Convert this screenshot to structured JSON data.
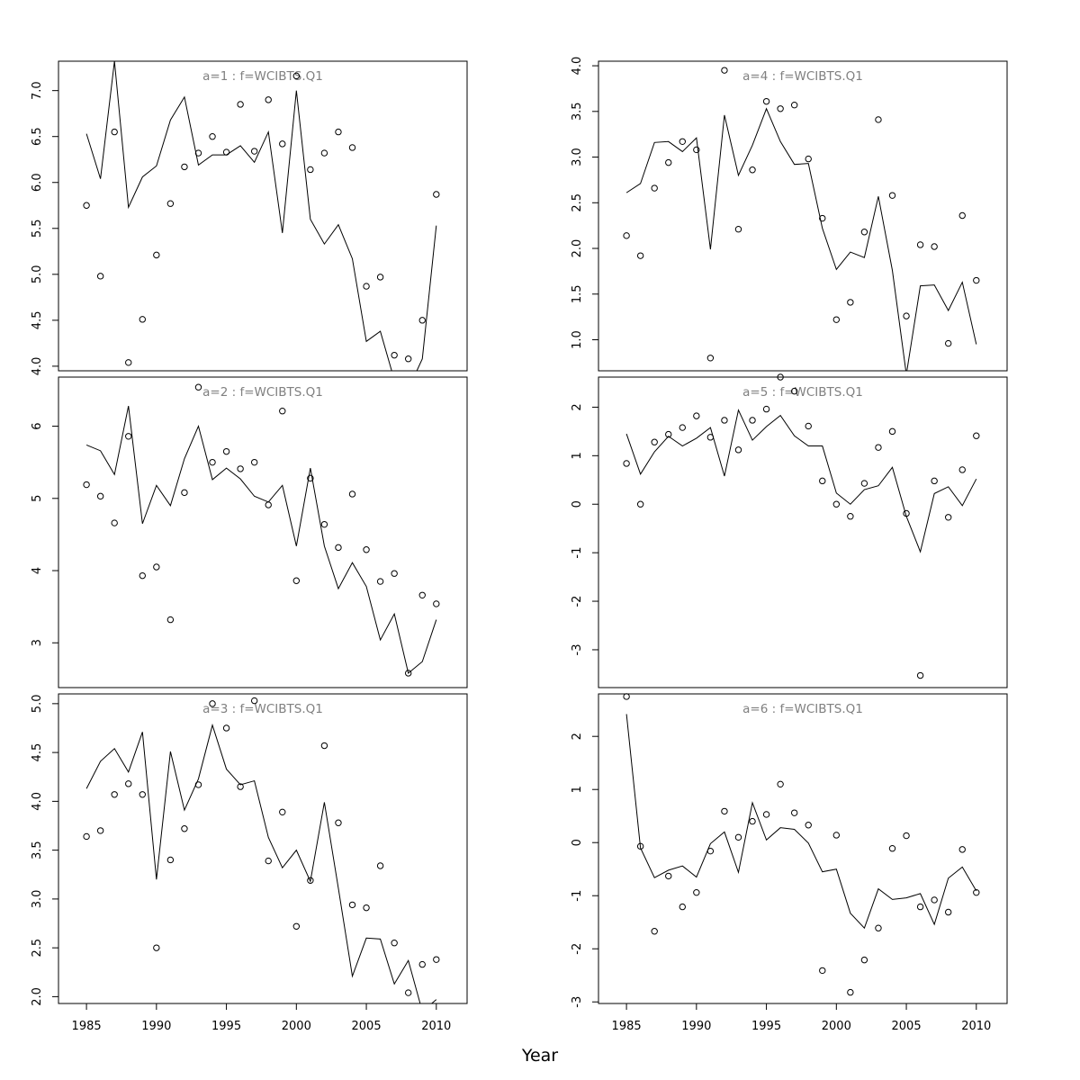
{
  "figure": {
    "xlabel": "Year"
  },
  "chart_data": [
    {
      "type": "line+scatter",
      "title": "a=1 : f=WCIBTS.Q1",
      "xlim": [
        1983,
        2012.2
      ],
      "ylim": [
        3.95,
        7.32
      ],
      "yticks": [
        4.0,
        4.5,
        5.0,
        5.5,
        6.0,
        6.5,
        7.0
      ],
      "ytick_labels": [
        "4.0",
        "4.5",
        "5.0",
        "5.5",
        "6.0",
        "6.5",
        "7.0"
      ],
      "xticks": [],
      "x": [
        1985,
        1986,
        1987,
        1988,
        1989,
        1990,
        1991,
        1992,
        1993,
        1994,
        1995,
        1996,
        1997,
        1998,
        1999,
        2000,
        2001,
        2002,
        2003,
        2004,
        2005,
        2006,
        2007,
        2008,
        2009,
        2010
      ],
      "observed": [
        5.75,
        4.98,
        6.55,
        4.04,
        4.51,
        5.21,
        5.77,
        6.17,
        6.32,
        6.5,
        6.33,
        6.85,
        6.34,
        6.9,
        6.42,
        7.16,
        6.14,
        6.32,
        6.55,
        6.38,
        4.87,
        4.97,
        4.12,
        4.08,
        4.5,
        5.87
      ],
      "fitted": [
        6.53,
        6.04,
        7.32,
        5.73,
        6.06,
        6.18,
        6.68,
        6.93,
        6.19,
        6.3,
        6.3,
        6.4,
        6.22,
        6.55,
        5.45,
        7.0,
        5.6,
        5.33,
        5.54,
        5.17,
        4.27,
        4.38,
        3.85,
        3.75,
        4.08,
        5.53
      ]
    },
    {
      "type": "line+scatter",
      "title": "a=2 : f=WCIBTS.Q1",
      "xlim": [
        1983,
        2012.2
      ],
      "ylim": [
        2.38,
        6.68
      ],
      "yticks": [
        3,
        4,
        5,
        6
      ],
      "ytick_labels": [
        "3",
        "4",
        "5",
        "6"
      ],
      "xticks": [],
      "x": [
        1985,
        1986,
        1987,
        1988,
        1989,
        1990,
        1991,
        1992,
        1993,
        1994,
        1995,
        1996,
        1997,
        1998,
        1999,
        2000,
        2001,
        2002,
        2003,
        2004,
        2005,
        2006,
        2007,
        2008,
        2009,
        2010
      ],
      "observed": [
        5.19,
        5.03,
        4.66,
        5.86,
        3.93,
        4.05,
        3.32,
        5.08,
        6.54,
        5.5,
        5.65,
        5.41,
        5.5,
        4.91,
        6.21,
        3.86,
        5.28,
        4.64,
        4.32,
        5.06,
        4.29,
        3.85,
        3.96,
        2.58,
        3.66,
        3.54
      ],
      "fitted": [
        5.74,
        5.66,
        5.33,
        6.28,
        4.65,
        5.18,
        4.9,
        5.55,
        6.0,
        5.26,
        5.42,
        5.27,
        5.03,
        4.95,
        5.18,
        4.34,
        5.42,
        4.34,
        3.75,
        4.11,
        3.78,
        3.04,
        3.4,
        2.58,
        2.74,
        3.32
      ]
    },
    {
      "type": "line+scatter",
      "title": "a=3 : f=WCIBTS.Q1",
      "xlim": [
        1983,
        2012.2
      ],
      "ylim": [
        1.93,
        5.1
      ],
      "yticks": [
        2.0,
        2.5,
        3.0,
        3.5,
        4.0,
        4.5,
        5.0
      ],
      "ytick_labels": [
        "2.0",
        "2.5",
        "3.0",
        "3.5",
        "4.0",
        "4.5",
        "5.0"
      ],
      "xticks": [
        1985,
        1990,
        1995,
        2000,
        2005,
        2010
      ],
      "xtick_labels": [
        "1985",
        "1990",
        "1995",
        "2000",
        "2005",
        "2010"
      ],
      "x": [
        1985,
        1986,
        1987,
        1988,
        1989,
        1990,
        1991,
        1992,
        1993,
        1994,
        1995,
        1996,
        1997,
        1998,
        1999,
        2000,
        2001,
        2002,
        2003,
        2004,
        2005,
        2006,
        2007,
        2008,
        2009,
        2010
      ],
      "observed": [
        3.64,
        3.7,
        4.07,
        4.18,
        4.07,
        2.5,
        3.4,
        3.72,
        4.17,
        5.0,
        4.75,
        4.15,
        5.03,
        3.39,
        3.89,
        2.72,
        3.19,
        4.57,
        3.78,
        2.94,
        2.91,
        3.34,
        2.55,
        2.04,
        2.33,
        2.38
      ],
      "fitted": [
        4.13,
        4.41,
        4.54,
        4.3,
        4.71,
        3.2,
        4.51,
        3.91,
        4.23,
        4.78,
        4.33,
        4.17,
        4.21,
        3.63,
        3.32,
        3.5,
        3.18,
        3.99,
        3.11,
        2.21,
        2.6,
        2.59,
        2.13,
        2.37,
        1.85,
        1.97
      ]
    },
    {
      "type": "line+scatter",
      "title": "a=4 : f=WCIBTS.Q1",
      "xlim": [
        1983,
        2012.2
      ],
      "ylim": [
        0.66,
        4.05
      ],
      "yticks": [
        1.0,
        1.5,
        2.0,
        2.5,
        3.0,
        3.5,
        4.0
      ],
      "ytick_labels": [
        "1.0",
        "1.5",
        "2.0",
        "2.5",
        "3.0",
        "3.5",
        "4.0"
      ],
      "xticks": [],
      "x": [
        1985,
        1986,
        1987,
        1988,
        1989,
        1990,
        1991,
        1992,
        1993,
        1994,
        1995,
        1996,
        1997,
        1998,
        1999,
        2000,
        2001,
        2002,
        2003,
        2004,
        2005,
        2006,
        2007,
        2008,
        2009,
        2010
      ],
      "observed": [
        2.14,
        1.92,
        2.66,
        2.94,
        3.17,
        3.08,
        0.8,
        3.95,
        2.21,
        2.86,
        3.61,
        3.53,
        3.57,
        2.98,
        2.33,
        1.22,
        1.41,
        2.18,
        3.41,
        2.58,
        1.26,
        2.04,
        2.02,
        0.96,
        2.36,
        1.65
      ],
      "fitted": [
        2.61,
        2.71,
        3.16,
        3.17,
        3.06,
        3.21,
        1.99,
        3.46,
        2.8,
        3.13,
        3.53,
        3.17,
        2.92,
        2.93,
        2.22,
        1.77,
        1.96,
        1.9,
        2.57,
        1.76,
        0.62,
        1.59,
        1.6,
        1.32,
        1.63,
        0.95
      ]
    },
    {
      "type": "line+scatter",
      "title": "a=5 : f=WCIBTS.Q1",
      "xlim": [
        1983,
        2012.2
      ],
      "ylim": [
        -3.78,
        2.62
      ],
      "yticks": [
        -3,
        -2,
        -1,
        0,
        1,
        2
      ],
      "ytick_labels": [
        "-3",
        "-2",
        "-1",
        "0",
        "1",
        "2"
      ],
      "xticks": [],
      "x": [
        1985,
        1986,
        1987,
        1988,
        1989,
        1990,
        1991,
        1992,
        1993,
        1994,
        1995,
        1996,
        1997,
        1998,
        1999,
        2000,
        2001,
        2002,
        2003,
        2004,
        2005,
        2006,
        2007,
        2008,
        2009,
        2010
      ],
      "observed": [
        0.84,
        0.0,
        1.28,
        1.44,
        1.58,
        1.82,
        1.38,
        1.73,
        1.12,
        1.73,
        1.96,
        2.62,
        2.33,
        1.61,
        0.48,
        0.0,
        -0.25,
        0.43,
        1.17,
        1.5,
        -0.19,
        -3.53,
        0.48,
        -0.27,
        0.71,
        1.41
      ],
      "fitted": [
        1.45,
        0.62,
        1.08,
        1.4,
        1.2,
        1.36,
        1.58,
        0.58,
        1.94,
        1.32,
        1.6,
        1.83,
        1.41,
        1.2,
        1.2,
        0.23,
        0.0,
        0.3,
        0.38,
        0.76,
        -0.25,
        -0.98,
        0.22,
        0.36,
        -0.03,
        0.52
      ]
    },
    {
      "type": "line+scatter",
      "title": "a=6 : f=WCIBTS.Q1",
      "xlim": [
        1983,
        2012.2
      ],
      "ylim": [
        -3.03,
        2.8
      ],
      "yticks": [
        -3,
        -2,
        -1,
        0,
        1,
        2
      ],
      "ytick_labels": [
        "-3",
        "-2",
        "-1",
        "0",
        "1",
        "2"
      ],
      "xticks": [
        1985,
        1990,
        1995,
        2000,
        2005,
        2010
      ],
      "xtick_labels": [
        "1985",
        "1990",
        "1995",
        "2000",
        "2005",
        "2010"
      ],
      "x": [
        1985,
        1986,
        1987,
        1988,
        1989,
        1990,
        1991,
        1992,
        1993,
        1994,
        1995,
        1996,
        1997,
        1998,
        1999,
        2000,
        2001,
        2002,
        2003,
        2004,
        2005,
        2006,
        2007,
        2008,
        2009,
        2010
      ],
      "observed": [
        2.75,
        -0.07,
        -1.67,
        -0.63,
        -1.21,
        -0.94,
        -0.16,
        0.59,
        0.1,
        0.4,
        0.53,
        1.1,
        0.56,
        0.33,
        -2.41,
        0.14,
        -2.82,
        -2.21,
        -1.61,
        -0.11,
        0.13,
        -1.21,
        -1.08,
        -1.31,
        -0.13,
        -0.94
      ],
      "fitted": [
        2.42,
        -0.1,
        -0.66,
        -0.52,
        -0.44,
        -0.65,
        -0.02,
        0.2,
        -0.56,
        0.75,
        0.05,
        0.28,
        0.25,
        -0.01,
        -0.55,
        -0.5,
        -1.33,
        -1.61,
        -0.87,
        -1.07,
        -1.04,
        -0.96,
        -1.54,
        -0.67,
        -0.46,
        -0.91
      ]
    }
  ]
}
